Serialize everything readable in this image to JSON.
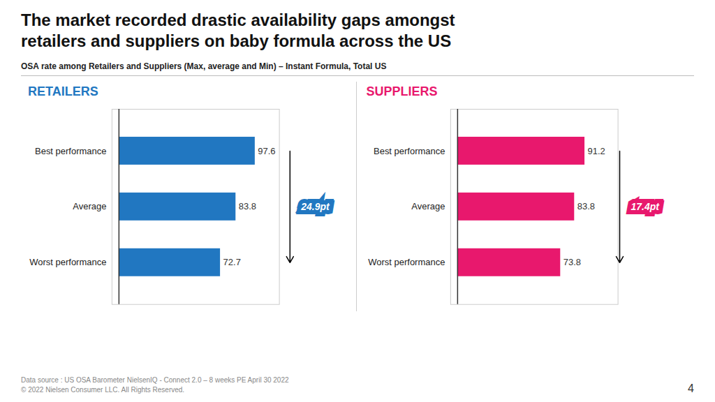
{
  "title": "The market recorded drastic availability gaps amongst\nretailers and suppliers on baby formula across the US",
  "subtitle": "OSA rate among Retailers and Suppliers (Max, average and Min) – Instant Formula, Total US",
  "annotations": [
    "Data source : US OSA Barometer NielsenIQ - Connect 2.0 – 8 weeks PE April 30 2022",
    "© 2022 Nielsen Consumer LLC. All Rights Reserved.",
    "4"
  ],
  "chart_data": [
    {
      "type": "bar",
      "orientation": "horizontal",
      "title": "RETAILERS",
      "categories": [
        "Best performance",
        "Average",
        "Worst performance"
      ],
      "values": [
        97.6,
        83.8,
        72.7
      ],
      "color": "#2177C1",
      "xlim": [
        -5,
        115
      ],
      "data_labels": true,
      "tick_labels": "y",
      "grid": false,
      "annotations": [
        "24.9pt"
      ]
    },
    {
      "type": "bar",
      "orientation": "horizontal",
      "title": "SUPPLIERS",
      "categories": [
        "Best performance",
        "Average",
        "Worst performance"
      ],
      "values": [
        91.2,
        83.8,
        73.8
      ],
      "color": "#E8186D",
      "xlim": [
        -5,
        115
      ],
      "data_labels": true,
      "tick_labels": "y",
      "grid": false,
      "annotations": [
        "17.4pt"
      ]
    }
  ]
}
